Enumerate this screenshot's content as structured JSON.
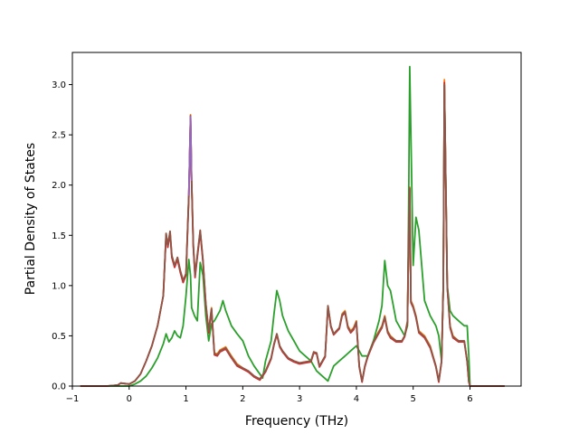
{
  "chart_data": {
    "type": "line",
    "title": "",
    "xlabel": "Frequency (THz)",
    "ylabel": "Partial Density of States",
    "xlim": [
      -1.0,
      6.9
    ],
    "ylim": [
      0.0,
      3.32
    ],
    "xticks": [
      -1,
      0,
      1,
      2,
      3,
      4,
      5,
      6
    ],
    "xtick_labels": [
      "−1",
      "0",
      "1",
      "2",
      "3",
      "4",
      "5",
      "6"
    ],
    "yticks": [
      0.0,
      0.5,
      1.0,
      1.5,
      2.0,
      2.5,
      3.0
    ],
    "ytick_labels": [
      "0.0",
      "0.5",
      "1.0",
      "1.5",
      "2.0",
      "2.5",
      "3.0"
    ],
    "grid": false,
    "legend": "none",
    "series": [
      {
        "color": "#ff7f0e",
        "x": [
          -0.85,
          -0.4,
          -0.2,
          -0.15,
          0.0,
          0.1,
          0.2,
          0.3,
          0.4,
          0.5,
          0.6,
          0.65,
          0.68,
          0.72,
          0.75,
          0.8,
          0.85,
          0.9,
          0.95,
          1.0,
          1.05,
          1.08,
          1.1,
          1.13,
          1.16,
          1.2,
          1.25,
          1.3,
          1.35,
          1.4,
          1.45,
          1.5,
          1.55,
          1.6,
          1.7,
          1.8,
          1.9,
          2.0,
          2.1,
          2.2,
          2.3,
          2.4,
          2.5,
          2.55,
          2.6,
          2.65,
          2.7,
          2.8,
          2.9,
          3.0,
          3.1,
          3.2,
          3.25,
          3.3,
          3.35,
          3.4,
          3.45,
          3.5,
          3.55,
          3.6,
          3.7,
          3.75,
          3.8,
          3.85,
          3.9,
          3.95,
          4.0,
          4.05,
          4.1,
          4.15,
          4.2,
          4.3,
          4.4,
          4.45,
          4.5,
          4.55,
          4.6,
          4.7,
          4.8,
          4.85,
          4.9,
          4.92,
          4.94,
          4.96,
          5.0,
          5.05,
          5.1,
          5.2,
          5.3,
          5.4,
          5.45,
          5.5,
          5.53,
          5.55,
          5.57,
          5.6,
          5.65,
          5.7,
          5.8,
          5.9,
          5.95,
          5.98,
          6.0,
          6.6
        ],
        "y": [
          0.0,
          0.0,
          0.01,
          0.03,
          0.02,
          0.05,
          0.12,
          0.25,
          0.4,
          0.6,
          0.9,
          1.52,
          1.4,
          1.54,
          1.3,
          1.2,
          1.28,
          1.15,
          1.05,
          1.12,
          1.9,
          2.7,
          2.05,
          1.4,
          1.1,
          1.3,
          1.55,
          1.25,
          0.82,
          0.55,
          0.78,
          0.33,
          0.32,
          0.36,
          0.39,
          0.3,
          0.22,
          0.18,
          0.15,
          0.1,
          0.07,
          0.15,
          0.28,
          0.42,
          0.52,
          0.4,
          0.35,
          0.28,
          0.25,
          0.23,
          0.24,
          0.25,
          0.34,
          0.33,
          0.2,
          0.25,
          0.3,
          0.8,
          0.6,
          0.52,
          0.58,
          0.72,
          0.75,
          0.6,
          0.55,
          0.58,
          0.65,
          0.2,
          0.05,
          0.2,
          0.3,
          0.45,
          0.55,
          0.6,
          0.7,
          0.55,
          0.5,
          0.45,
          0.45,
          0.5,
          0.65,
          1.5,
          1.98,
          0.85,
          0.8,
          0.7,
          0.55,
          0.5,
          0.4,
          0.2,
          0.05,
          0.25,
          1.0,
          3.05,
          2.2,
          1.0,
          0.6,
          0.5,
          0.45,
          0.45,
          0.25,
          0.05,
          0.0,
          0.0
        ]
      },
      {
        "color": "#2ca02c",
        "x": [
          -0.85,
          -0.4,
          -0.2,
          0.0,
          0.1,
          0.2,
          0.3,
          0.4,
          0.5,
          0.6,
          0.65,
          0.7,
          0.75,
          0.8,
          0.85,
          0.9,
          0.95,
          1.0,
          1.05,
          1.08,
          1.1,
          1.15,
          1.2,
          1.25,
          1.3,
          1.35,
          1.4,
          1.45,
          1.5,
          1.55,
          1.6,
          1.65,
          1.7,
          1.8,
          1.9,
          2.0,
          2.1,
          2.2,
          2.3,
          2.35,
          2.4,
          2.5,
          2.55,
          2.6,
          2.65,
          2.7,
          2.8,
          2.9,
          3.0,
          3.1,
          3.2,
          3.3,
          3.4,
          3.5,
          3.6,
          3.7,
          3.8,
          3.9,
          4.0,
          4.1,
          4.2,
          4.3,
          4.4,
          4.45,
          4.5,
          4.55,
          4.6,
          4.7,
          4.8,
          4.85,
          4.9,
          4.92,
          4.94,
          4.96,
          5.0,
          5.05,
          5.1,
          5.2,
          5.3,
          5.4,
          5.45,
          5.5,
          5.53,
          5.55,
          5.57,
          5.6,
          5.65,
          5.7,
          5.8,
          5.9,
          5.95,
          5.98,
          6.0,
          6.6
        ],
        "y": [
          0.0,
          0.0,
          0.0,
          0.0,
          0.02,
          0.05,
          0.1,
          0.18,
          0.28,
          0.42,
          0.52,
          0.44,
          0.48,
          0.55,
          0.5,
          0.48,
          0.6,
          0.9,
          1.26,
          1.1,
          0.78,
          0.7,
          0.65,
          1.23,
          1.1,
          0.7,
          0.45,
          0.62,
          0.65,
          0.7,
          0.75,
          0.85,
          0.75,
          0.6,
          0.52,
          0.45,
          0.3,
          0.2,
          0.12,
          0.08,
          0.25,
          0.45,
          0.72,
          0.95,
          0.85,
          0.7,
          0.55,
          0.45,
          0.35,
          0.3,
          0.25,
          0.15,
          0.1,
          0.05,
          0.2,
          0.25,
          0.3,
          0.35,
          0.4,
          0.3,
          0.3,
          0.45,
          0.65,
          0.8,
          1.25,
          1.0,
          0.95,
          0.65,
          0.55,
          0.5,
          0.6,
          1.8,
          3.18,
          2.5,
          1.2,
          1.68,
          1.55,
          0.85,
          0.7,
          0.6,
          0.5,
          0.25,
          1.0,
          3.0,
          2.2,
          1.0,
          0.75,
          0.7,
          0.65,
          0.6,
          0.6,
          0.3,
          0.0,
          0.0
        ]
      },
      {
        "color": "#d62728",
        "x": [
          -0.85,
          -0.4,
          -0.2,
          -0.15,
          0.0,
          0.1,
          0.2,
          0.3,
          0.4,
          0.5,
          0.6,
          0.65,
          0.68,
          0.72,
          0.75,
          0.8,
          0.85,
          0.9,
          0.95,
          1.0,
          1.05,
          1.08,
          1.1,
          1.13,
          1.16,
          1.2,
          1.25,
          1.3,
          1.35,
          1.4,
          1.45,
          1.5,
          1.55,
          1.6,
          1.7,
          1.8,
          1.9,
          2.0,
          2.1,
          2.2,
          2.3,
          2.4,
          2.5,
          2.55,
          2.6,
          2.65,
          2.7,
          2.8,
          2.9,
          3.0,
          3.1,
          3.2,
          3.25,
          3.3,
          3.35,
          3.4,
          3.45,
          3.5,
          3.55,
          3.6,
          3.7,
          3.75,
          3.8,
          3.85,
          3.9,
          3.95,
          4.0,
          4.05,
          4.1,
          4.15,
          4.2,
          4.3,
          4.4,
          4.45,
          4.5,
          4.55,
          4.6,
          4.7,
          4.8,
          4.85,
          4.9,
          4.92,
          4.94,
          4.96,
          5.0,
          5.05,
          5.1,
          5.2,
          5.3,
          5.4,
          5.45,
          5.5,
          5.53,
          5.55,
          5.57,
          5.6,
          5.65,
          5.7,
          5.8,
          5.9,
          5.95,
          5.98,
          6.0,
          6.6
        ],
        "y": [
          0.0,
          0.0,
          0.01,
          0.03,
          0.02,
          0.05,
          0.12,
          0.25,
          0.4,
          0.6,
          0.9,
          1.5,
          1.38,
          1.52,
          1.28,
          1.18,
          1.26,
          1.13,
          1.03,
          1.1,
          1.88,
          2.68,
          2.03,
          1.38,
          1.08,
          1.28,
          1.53,
          1.23,
          0.8,
          0.53,
          0.76,
          0.31,
          0.3,
          0.34,
          0.37,
          0.28,
          0.2,
          0.17,
          0.14,
          0.09,
          0.06,
          0.14,
          0.27,
          0.41,
          0.51,
          0.39,
          0.34,
          0.27,
          0.24,
          0.22,
          0.23,
          0.24,
          0.33,
          0.32,
          0.19,
          0.24,
          0.29,
          0.79,
          0.59,
          0.51,
          0.57,
          0.7,
          0.73,
          0.58,
          0.53,
          0.56,
          0.63,
          0.19,
          0.04,
          0.19,
          0.29,
          0.43,
          0.53,
          0.58,
          0.68,
          0.53,
          0.48,
          0.44,
          0.44,
          0.49,
          0.63,
          1.48,
          1.96,
          0.83,
          0.78,
          0.68,
          0.53,
          0.48,
          0.38,
          0.19,
          0.04,
          0.24,
          0.98,
          3.02,
          2.18,
          0.98,
          0.58,
          0.48,
          0.44,
          0.44,
          0.24,
          0.04,
          0.0,
          0.0
        ]
      },
      {
        "color": "#8c564b",
        "x": [
          -0.85,
          -0.4,
          -0.2,
          -0.15,
          0.0,
          0.1,
          0.2,
          0.3,
          0.4,
          0.5,
          0.6,
          0.65,
          0.68,
          0.72,
          0.75,
          0.8,
          0.85,
          0.9,
          0.95,
          1.0,
          1.05,
          1.08,
          1.1,
          1.13,
          1.16,
          1.2,
          1.25,
          1.3,
          1.35,
          1.4,
          1.45,
          1.5,
          1.55,
          1.6,
          1.7,
          1.8,
          1.9,
          2.0,
          2.1,
          2.2,
          2.3,
          2.4,
          2.5,
          2.55,
          2.6,
          2.65,
          2.7,
          2.8,
          2.9,
          3.0,
          3.1,
          3.2,
          3.25,
          3.3,
          3.35,
          3.4,
          3.45,
          3.5,
          3.55,
          3.6,
          3.7,
          3.75,
          3.8,
          3.85,
          3.9,
          3.95,
          4.0,
          4.05,
          4.1,
          4.15,
          4.2,
          4.3,
          4.4,
          4.45,
          4.5,
          4.55,
          4.6,
          4.7,
          4.8,
          4.85,
          4.9,
          4.92,
          4.94,
          4.96,
          5.0,
          5.05,
          5.1,
          5.2,
          5.3,
          5.4,
          5.45,
          5.5,
          5.53,
          5.55,
          5.57,
          5.6,
          5.65,
          5.7,
          5.8,
          5.9,
          5.95,
          5.98,
          6.0,
          6.6
        ],
        "y": [
          0.0,
          0.0,
          0.01,
          0.03,
          0.02,
          0.05,
          0.12,
          0.25,
          0.4,
          0.6,
          0.9,
          1.52,
          1.4,
          1.54,
          1.3,
          1.2,
          1.28,
          1.15,
          1.05,
          1.12,
          1.9,
          2.69,
          2.05,
          1.4,
          1.1,
          1.3,
          1.55,
          1.25,
          0.82,
          0.55,
          0.77,
          0.32,
          0.31,
          0.35,
          0.38,
          0.29,
          0.21,
          0.18,
          0.15,
          0.1,
          0.07,
          0.15,
          0.28,
          0.42,
          0.52,
          0.4,
          0.35,
          0.28,
          0.25,
          0.23,
          0.24,
          0.25,
          0.34,
          0.33,
          0.2,
          0.25,
          0.3,
          0.8,
          0.6,
          0.52,
          0.58,
          0.71,
          0.74,
          0.59,
          0.54,
          0.57,
          0.64,
          0.2,
          0.05,
          0.2,
          0.3,
          0.44,
          0.54,
          0.59,
          0.69,
          0.54,
          0.49,
          0.45,
          0.45,
          0.5,
          0.64,
          1.49,
          1.97,
          0.84,
          0.79,
          0.69,
          0.54,
          0.49,
          0.39,
          0.2,
          0.05,
          0.25,
          0.99,
          3.0,
          2.19,
          0.99,
          0.59,
          0.49,
          0.45,
          0.45,
          0.25,
          0.05,
          0.0,
          0.0
        ]
      },
      {
        "color": "#9467bd",
        "x": [
          1.05,
          1.08,
          1.1
        ],
        "y": [
          1.9,
          2.68,
          2.05
        ]
      }
    ]
  }
}
